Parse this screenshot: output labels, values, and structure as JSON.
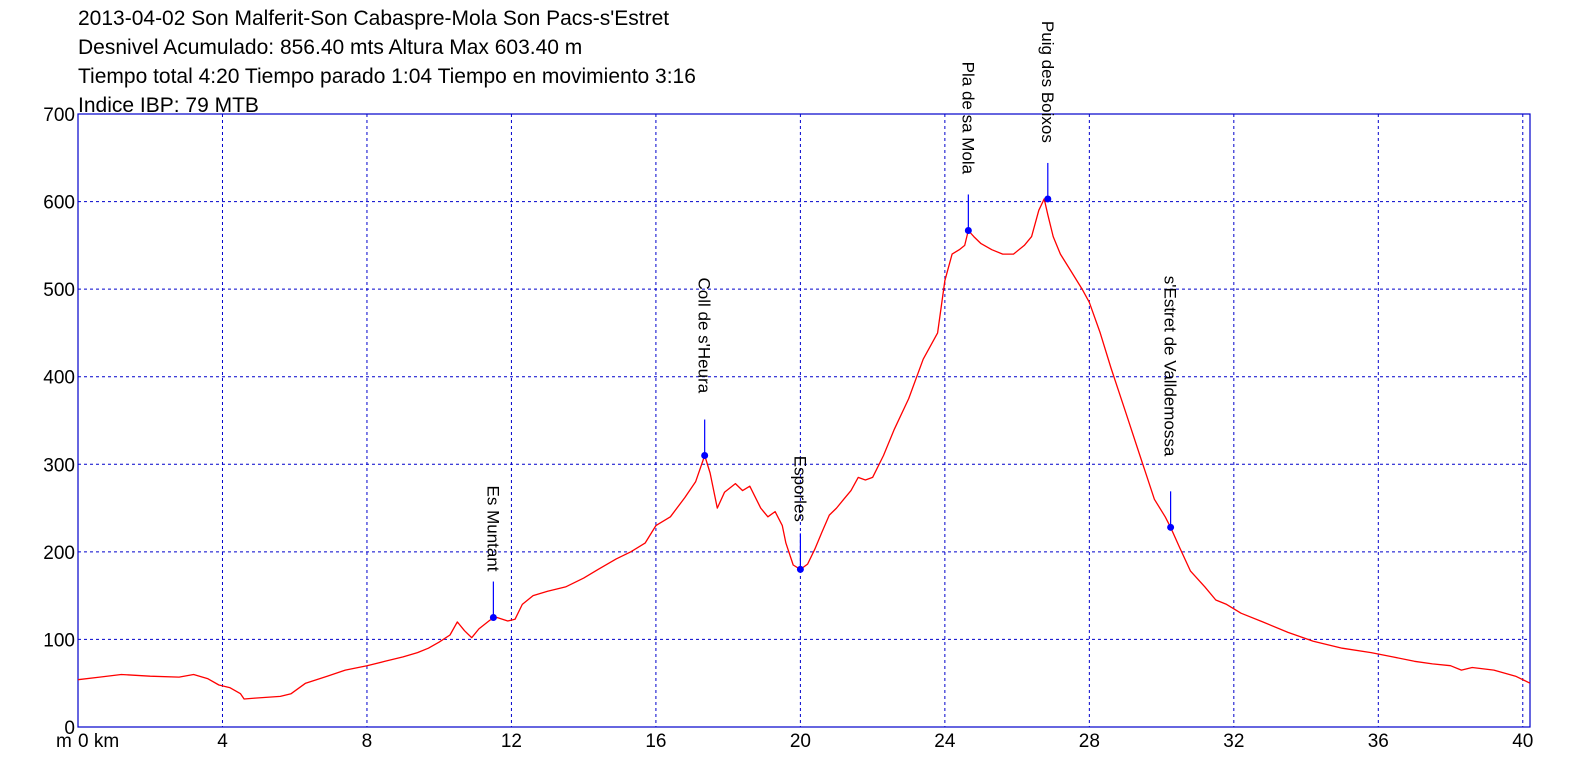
{
  "header": {
    "line1": "2013-04-02 Son Malferit-Son Cabaspre-Mola Son Pacs-s'Estret",
    "line2": "Desnivel Acumulado: 856.40 mts  Altura Max 603.40 m",
    "line3": "Tiempo total 4:20 Tiempo parado 1:04 Tiempo en movimiento 3:16",
    "line4": "Indice IBP: 79 MTB"
  },
  "chart_data": {
    "type": "line",
    "x_unit_label": "m",
    "x_first_tick_label": "0 km",
    "xlim": [
      0,
      40.2
    ],
    "ylim": [
      0,
      700
    ],
    "x_ticks": [
      0,
      4,
      8,
      12,
      16,
      20,
      24,
      28,
      32,
      36,
      40
    ],
    "y_ticks": [
      0,
      100,
      200,
      300,
      400,
      500,
      600,
      700
    ],
    "grid": true,
    "colors": {
      "line": "#ff0000",
      "grid": "#0000cc",
      "frame": "#0000cc",
      "waypoint": "#0000ff"
    },
    "series": [
      {
        "x": [
          0,
          0.6,
          1.2,
          2.0,
          2.8,
          3.2,
          3.6,
          3.9,
          4.2,
          4.5,
          4.6,
          4.9,
          5.6,
          5.9,
          6.3,
          6.9,
          7.4,
          8.0,
          8.5,
          9.0,
          9.4,
          9.7,
          10.0,
          10.3,
          10.5,
          10.7,
          10.9,
          11.1,
          11.4,
          11.6,
          11.9,
          12.1,
          12.3,
          12.6,
          13.0,
          13.5,
          14.0,
          14.4,
          14.9,
          15.3,
          15.7,
          16.0,
          16.4,
          16.8,
          17.1,
          17.35,
          17.5,
          17.7,
          17.9,
          18.2,
          18.4,
          18.6,
          18.9,
          19.1,
          19.3,
          19.5,
          19.6,
          19.8,
          20.0,
          20.2,
          20.4,
          20.6,
          20.8,
          21.0,
          21.2,
          21.4,
          21.6,
          21.8,
          22.0,
          22.3,
          22.6,
          23.0,
          23.4,
          23.8,
          24.0,
          24.2,
          24.4,
          24.55,
          24.65,
          24.8,
          25.0,
          25.3,
          25.6,
          25.9,
          26.2,
          26.4,
          26.6,
          26.75,
          26.85,
          27.0,
          27.2,
          27.5,
          27.8,
          28.0,
          28.3,
          28.6,
          29.0,
          29.4,
          29.8,
          30.1,
          30.25,
          30.5,
          30.8,
          31.2,
          31.5,
          31.8,
          32.2,
          32.8,
          33.5,
          34.2,
          35.0,
          35.8,
          36.4,
          37.0,
          37.5,
          38.0,
          38.3,
          38.6,
          39.2,
          39.8,
          40.2
        ],
        "y": [
          54,
          57,
          60,
          58,
          57,
          60,
          55,
          48,
          45,
          38,
          32,
          33,
          35,
          38,
          50,
          58,
          65,
          70,
          75,
          80,
          85,
          90,
          97,
          105,
          120,
          110,
          102,
          112,
          122,
          125,
          121,
          123,
          140,
          150,
          155,
          160,
          170,
          180,
          192,
          200,
          210,
          230,
          240,
          262,
          280,
          310,
          290,
          250,
          268,
          278,
          270,
          275,
          250,
          240,
          246,
          230,
          210,
          185,
          180,
          186,
          203,
          223,
          242,
          250,
          260,
          270,
          285,
          282,
          285,
          310,
          340,
          375,
          420,
          450,
          510,
          540,
          545,
          550,
          567,
          560,
          552,
          545,
          540,
          540,
          550,
          560,
          590,
          603,
          585,
          560,
          540,
          520,
          500,
          485,
          450,
          410,
          360,
          310,
          260,
          240,
          228,
          205,
          178,
          160,
          145,
          140,
          130,
          120,
          108,
          98,
          90,
          85,
          80,
          75,
          72,
          70,
          65,
          68,
          65,
          58,
          50
        ]
      }
    ],
    "waypoints": [
      {
        "name": "Es Muntant",
        "x": 11.5,
        "y": 125
      },
      {
        "name": "Coll de s'Heura",
        "x": 17.35,
        "y": 310
      },
      {
        "name": "Esporles",
        "x": 20.0,
        "y": 180
      },
      {
        "name": "Pla de sa Mola",
        "x": 24.65,
        "y": 567
      },
      {
        "name": "Puig des Boixos",
        "x": 26.85,
        "y": 603
      },
      {
        "name": "s'Estret de Valldemossa",
        "x": 30.25,
        "y": 228
      }
    ]
  }
}
